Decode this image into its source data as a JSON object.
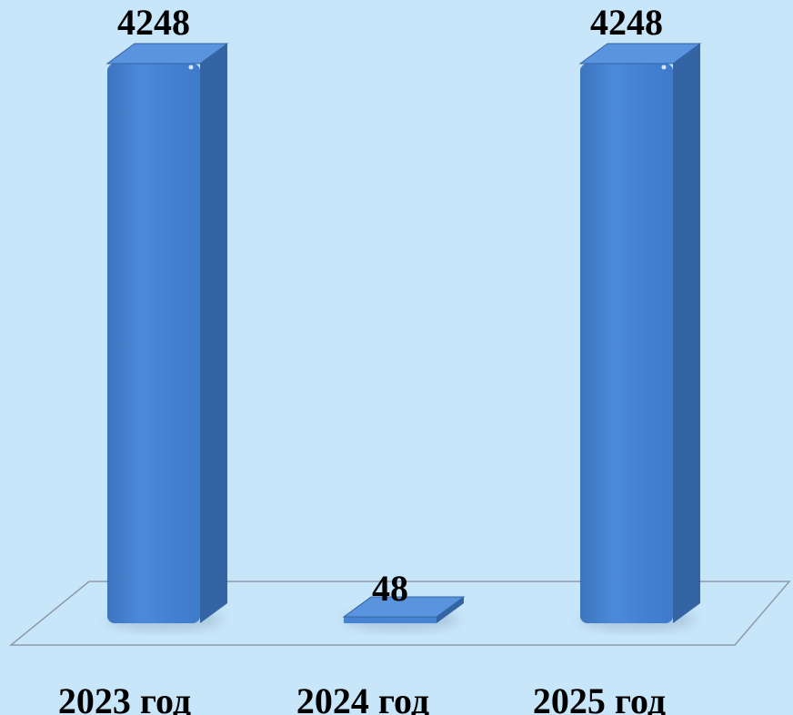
{
  "chart_data": {
    "type": "bar",
    "categories": [
      "2023 год",
      "2024 год",
      "2025 год"
    ],
    "values": [
      4248,
      48,
      4248
    ],
    "data_labels": [
      "4248",
      "48",
      "4248"
    ],
    "title": "",
    "xlabel": "",
    "ylabel": "",
    "ylim": [
      0,
      4248
    ],
    "grid": false,
    "legend": "none",
    "style": "3d-column",
    "colors": {
      "background": "#c8e6fa",
      "bar_front": "#4683d3",
      "bar_side": "#3464a3",
      "bar_top": "#5b94de",
      "floor_line": "#8e9aa6",
      "text": "#000000"
    }
  }
}
